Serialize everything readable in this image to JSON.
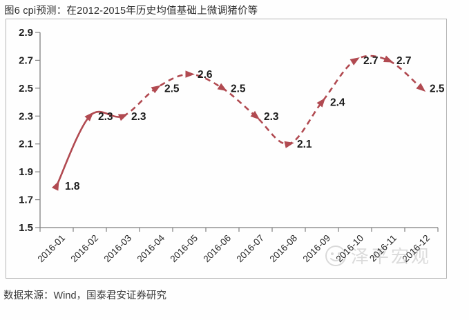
{
  "figure": {
    "title": "图6 cpi预测：在2012-2015年历史均值基础上微调猪价等",
    "source": "数据来源：Wind，国泰君安证券研究"
  },
  "watermark": {
    "icon": "smiley-logo-icon",
    "text": "泽平宏观"
  },
  "chart_data": {
    "type": "line",
    "title": "图6 cpi预测：在2012-2015年历史均值基础上微调猪价等",
    "categories": [
      "2016-01",
      "2016-02",
      "2016-03",
      "2016-04",
      "2016-05",
      "2016-06",
      "2016-07",
      "2016-08",
      "2016-09",
      "2016-10",
      "2016-11",
      "2016-12"
    ],
    "series": [
      {
        "name": "cpi预测",
        "values": [
          1.8,
          2.3,
          2.3,
          2.5,
          2.6,
          2.5,
          2.3,
          2.1,
          2.4,
          2.7,
          2.7,
          2.5
        ],
        "line_color": "#b14a51",
        "marker": "triangle",
        "smooth": true,
        "solid_until_index": 2,
        "dashed_from_index": 2
      }
    ],
    "data_labels": true,
    "data_label_color": "#1b1b1b",
    "xlabel": "",
    "ylabel": "",
    "ylim": [
      1.5,
      2.9
    ],
    "ytick_step": 0.2,
    "axis_color": "#7f7f7f",
    "tick_label_color": "#1f1f1f",
    "grid": false,
    "legend": "none"
  }
}
